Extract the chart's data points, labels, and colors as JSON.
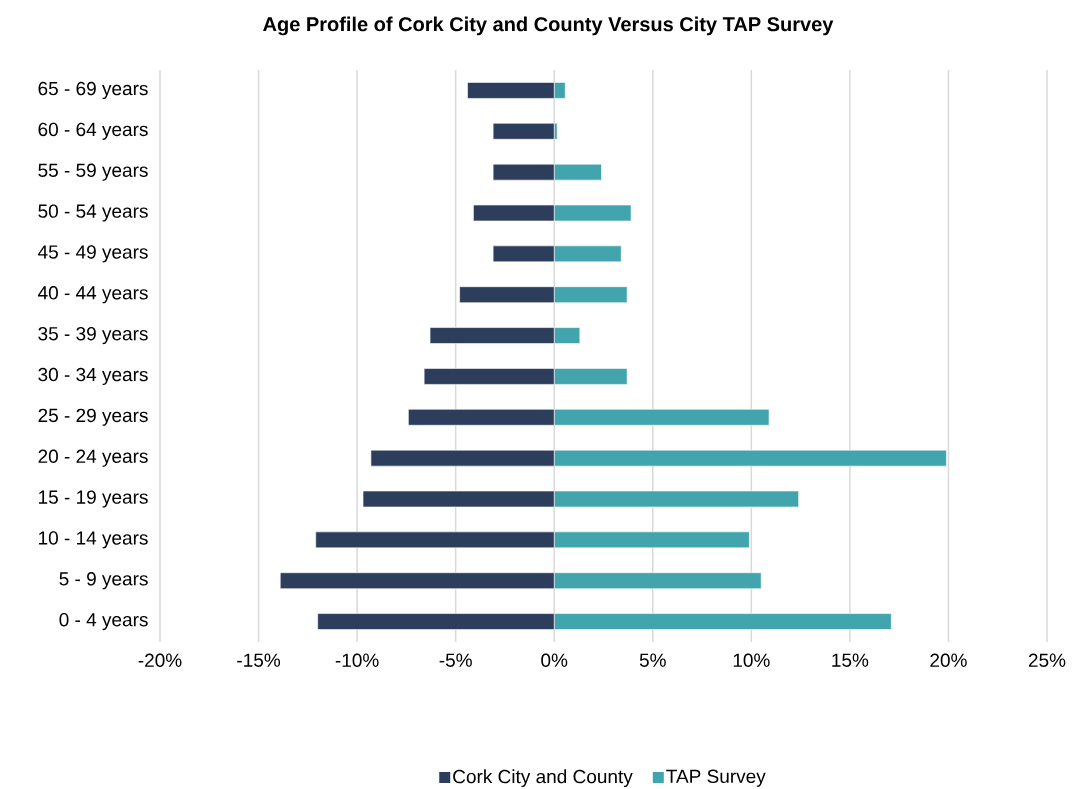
{
  "chart_data": {
    "type": "bar",
    "orientation": "horizontal",
    "title": "Age Profile of Cork City and County Versus City TAP Survey",
    "categories": [
      "65 - 69 years",
      "60 - 64 years",
      "55 - 59 years",
      "50 - 54 years",
      "45 - 49 years",
      "40 - 44 years",
      "35 - 39 years",
      "30 - 34 years",
      "25 - 29 years",
      "20 - 24 years",
      "15 - 19 years",
      "10 - 14 years",
      "5 - 9 years",
      "0 - 4 years"
    ],
    "series": [
      {
        "name": "Cork City and County",
        "color": "#2c3e5c",
        "values": [
          -4.4,
          -3.1,
          -3.1,
          -4.1,
          -3.1,
          -4.8,
          -6.3,
          -6.6,
          -7.4,
          -9.3,
          -9.7,
          -12.1,
          -13.9,
          -12.0
        ]
      },
      {
        "name": "TAP Survey",
        "color": "#42a5ad",
        "values": [
          0.56,
          0.15,
          2.4,
          3.9,
          3.4,
          3.7,
          1.3,
          3.7,
          10.9,
          19.9,
          12.4,
          9.9,
          10.5,
          17.1
        ]
      }
    ],
    "xlim": [
      -20,
      25
    ],
    "xticks": [
      {
        "value": -20,
        "label": "-20%"
      },
      {
        "value": -15,
        "label": "-15%"
      },
      {
        "value": -10,
        "label": "-10%"
      },
      {
        "value": -5,
        "label": "-5%"
      },
      {
        "value": 0,
        "label": "0%"
      },
      {
        "value": 5,
        "label": "5%"
      },
      {
        "value": 10,
        "label": "10%"
      },
      {
        "value": 15,
        "label": "15%"
      },
      {
        "value": 20,
        "label": "20%"
      },
      {
        "value": 25,
        "label": "25%"
      }
    ],
    "grid": "x",
    "legend": "bottom",
    "stacked": true
  }
}
